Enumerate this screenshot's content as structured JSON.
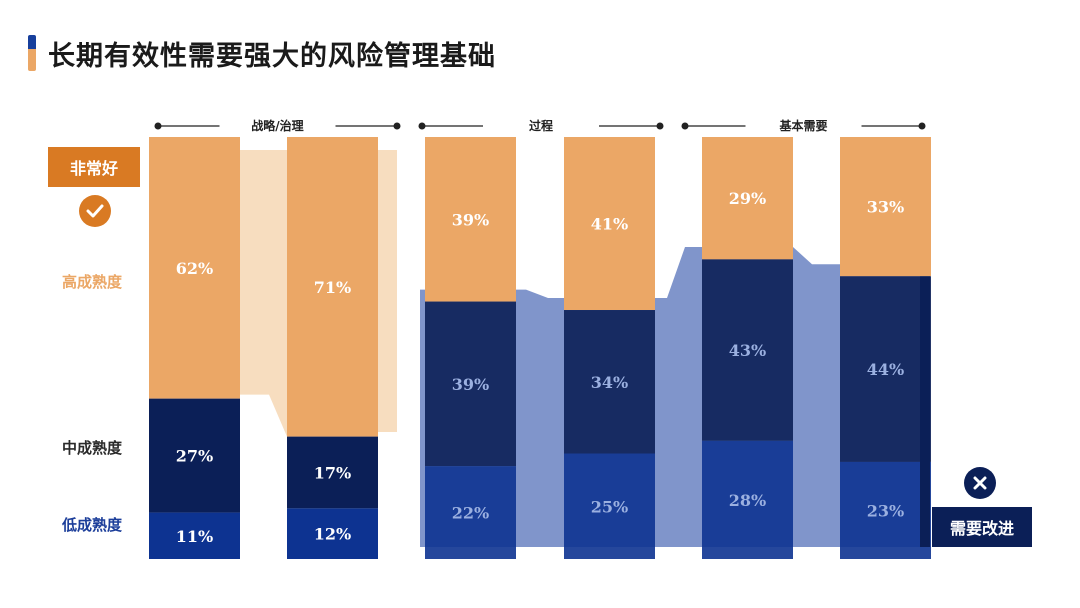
{
  "title": "长期有效性需要强大的风险管理基础",
  "colors": {
    "high": "#EBA766",
    "mid": "#0B1F57",
    "low": "#0D3391",
    "badge_orange": "#D97A23",
    "title_accent_top": "#173F9C",
    "title_accent_bottom": "#EBA766",
    "overlay_orange": "#F6D7B4",
    "overlay_blue": "#6E86C4",
    "low_label": "#1C3E9A",
    "mid_label": "#2B2B2B"
  },
  "legend": {
    "very_good": "非常好",
    "high": "高成熟度",
    "mid": "中成熟度",
    "low": "低成熟度",
    "needs_improvement": "需要改进"
  },
  "chart_data": {
    "type": "bar",
    "stacked": true,
    "title": "长期有效性需要强大的风险管理基础",
    "groups": [
      {
        "label": "战略/治理",
        "bar_count": 2
      },
      {
        "label": "过程",
        "bar_count": 2
      },
      {
        "label": "基本需要",
        "bar_count": 2
      }
    ],
    "series": [
      {
        "name": "低成熟度",
        "values": [
          11,
          12,
          22,
          25,
          28,
          23
        ]
      },
      {
        "name": "中成熟度",
        "values": [
          27,
          17,
          39,
          34,
          43,
          44
        ]
      },
      {
        "name": "高成熟度",
        "values": [
          62,
          71,
          39,
          41,
          29,
          33
        ]
      }
    ],
    "value_suffix": "%",
    "ylim": [
      0,
      100
    ]
  }
}
